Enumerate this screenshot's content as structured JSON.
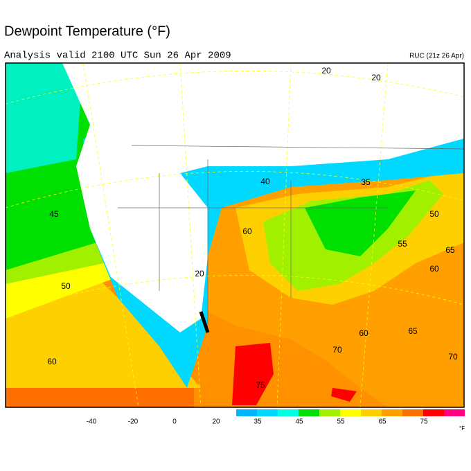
{
  "header": {
    "title": "Dewpoint Temperature (°F)",
    "subtitle": "Analysis valid 2100 UTC Sun 26 Apr 2009",
    "model": "RUC (21z 26 Apr)"
  },
  "map": {
    "contour_labels": [
      20,
      20,
      40,
      35,
      45,
      50,
      60,
      55,
      65,
      60,
      20,
      50,
      65,
      60,
      70,
      70,
      60,
      75
    ]
  },
  "colorbar": {
    "ticks": [
      -40,
      -20,
      0,
      20,
      35,
      45,
      55,
      65,
      75
    ],
    "unit": "°F",
    "colors": [
      "#00b4ff",
      "#00d8ff",
      "#00ffe0",
      "#00e000",
      "#a0f000",
      "#ffff00",
      "#ffd000",
      "#ffa000",
      "#ff7000",
      "#ff0000",
      "#ff0080"
    ]
  }
}
